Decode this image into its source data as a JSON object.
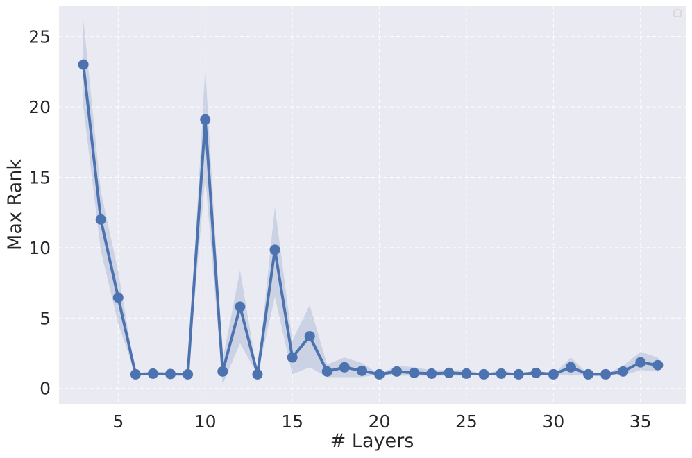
{
  "chart_data": {
    "type": "line",
    "title": "",
    "xlabel": "# Layers",
    "ylabel": "Max Rank",
    "xlim": [
      1.6,
      37.6
    ],
    "ylim": [
      -1.1,
      27.2
    ],
    "x_ticks": [
      5,
      10,
      15,
      20,
      25,
      30,
      35
    ],
    "y_ticks": [
      0,
      5,
      10,
      15,
      20,
      25
    ],
    "grid": true,
    "legend": "top-right (empty)",
    "colors": {
      "background": "#eaeaf2",
      "line": "#4c72b0",
      "band": "#4c72b0",
      "grid": "#ffffff"
    },
    "x": [
      3,
      4,
      5,
      6,
      7,
      8,
      9,
      10,
      11,
      12,
      13,
      14,
      15,
      16,
      17,
      18,
      19,
      20,
      21,
      22,
      23,
      24,
      25,
      26,
      27,
      28,
      29,
      30,
      31,
      32,
      33,
      34,
      35,
      36
    ],
    "values": [
      23.0,
      12.0,
      6.45,
      1.0,
      1.05,
      1.02,
      1.0,
      19.1,
      1.2,
      5.8,
      1.0,
      9.85,
      2.2,
      3.7,
      1.2,
      1.5,
      1.25,
      1.0,
      1.2,
      1.1,
      1.05,
      1.1,
      1.05,
      1.0,
      1.05,
      1.0,
      1.1,
      1.0,
      1.5,
      1.0,
      1.0,
      1.2,
      1.85,
      1.65
    ],
    "ci_lower": [
      20.0,
      9.8,
      4.6,
      1.0,
      1.0,
      1.0,
      1.0,
      15.0,
      0.3,
      3.2,
      1.0,
      6.5,
      1.0,
      1.5,
      0.8,
      0.8,
      0.8,
      1.0,
      0.9,
      0.9,
      0.9,
      0.9,
      0.9,
      1.0,
      0.9,
      1.0,
      0.9,
      1.0,
      0.9,
      1.0,
      1.0,
      0.9,
      1.3,
      1.2
    ],
    "ci_upper": [
      26.2,
      14.0,
      8.3,
      1.0,
      1.1,
      1.1,
      1.0,
      22.8,
      2.0,
      8.4,
      1.0,
      12.9,
      3.4,
      5.9,
      1.7,
      2.2,
      1.8,
      1.0,
      1.6,
      1.5,
      1.3,
      1.3,
      1.3,
      1.0,
      1.3,
      1.0,
      1.3,
      1.0,
      2.2,
      1.0,
      1.0,
      1.6,
      2.6,
      2.2
    ]
  }
}
